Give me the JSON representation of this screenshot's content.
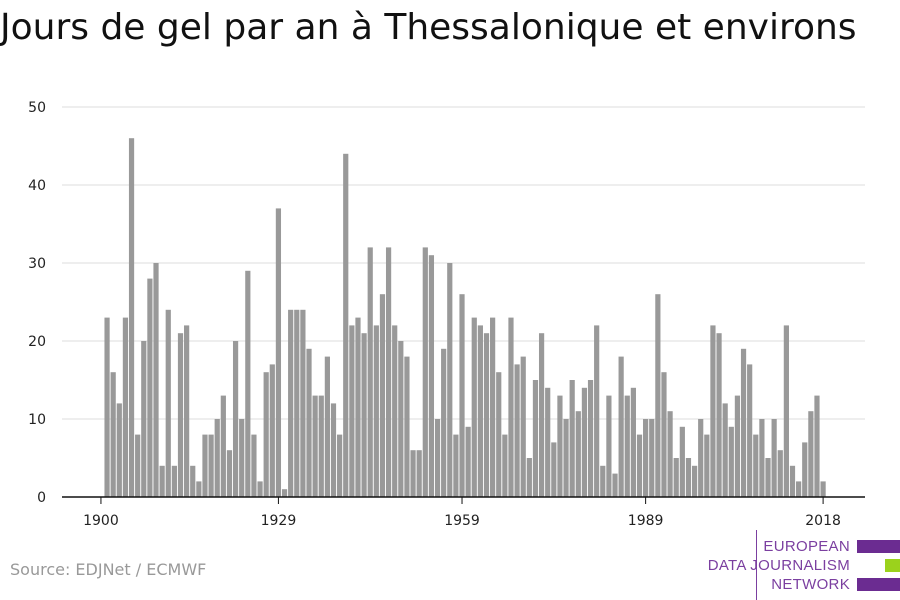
{
  "chart_data": {
    "type": "bar",
    "title": "Jours de gel par an à Thessalonique et environs",
    "xlabel": "",
    "ylabel": "",
    "ylim": [
      0,
      50
    ],
    "yticks": [
      0,
      10,
      20,
      30,
      40,
      50
    ],
    "xticks": [
      1900,
      1929,
      1959,
      1989,
      2018
    ],
    "grid": true,
    "bar_color": "#999999",
    "x": [
      1901,
      1902,
      1903,
      1904,
      1905,
      1906,
      1907,
      1908,
      1909,
      1910,
      1911,
      1912,
      1913,
      1914,
      1915,
      1916,
      1917,
      1918,
      1919,
      1920,
      1921,
      1922,
      1923,
      1924,
      1925,
      1926,
      1927,
      1928,
      1929,
      1930,
      1931,
      1932,
      1933,
      1934,
      1935,
      1936,
      1937,
      1938,
      1939,
      1940,
      1941,
      1942,
      1943,
      1944,
      1945,
      1946,
      1947,
      1948,
      1949,
      1950,
      1951,
      1952,
      1953,
      1954,
      1955,
      1956,
      1957,
      1958,
      1959,
      1960,
      1961,
      1962,
      1963,
      1964,
      1965,
      1966,
      1967,
      1968,
      1969,
      1970,
      1971,
      1972,
      1973,
      1974,
      1975,
      1976,
      1977,
      1978,
      1979,
      1980,
      1981,
      1982,
      1983,
      1984,
      1985,
      1986,
      1987,
      1988,
      1989,
      1990,
      1991,
      1992,
      1993,
      1994,
      1995,
      1996,
      1997,
      1998,
      1999,
      2000,
      2001,
      2002,
      2003,
      2004,
      2005,
      2006,
      2007,
      2008,
      2009,
      2010,
      2011,
      2012,
      2013,
      2014,
      2015,
      2016,
      2017,
      2018
    ],
    "values": [
      23,
      16,
      12,
      23,
      46,
      8,
      20,
      28,
      30,
      4,
      24,
      4,
      21,
      22,
      4,
      2,
      8,
      8,
      10,
      13,
      6,
      20,
      10,
      29,
      8,
      2,
      16,
      17,
      37,
      1,
      24,
      24,
      24,
      19,
      13,
      13,
      18,
      12,
      8,
      44,
      22,
      23,
      21,
      32,
      22,
      26,
      32,
      22,
      20,
      18,
      6,
      6,
      32,
      31,
      10,
      19,
      30,
      8,
      26,
      9,
      23,
      22,
      21,
      23,
      16,
      8,
      23,
      17,
      18,
      5,
      15,
      21,
      14,
      7,
      13,
      10,
      15,
      11,
      14,
      15,
      22,
      4,
      13,
      3,
      18,
      13,
      14,
      8,
      10,
      10,
      26,
      16,
      11,
      5,
      9,
      5,
      4,
      10,
      8,
      22,
      21,
      12,
      9,
      13,
      19,
      17,
      8,
      10,
      5,
      10,
      6,
      22,
      4,
      2,
      7,
      11,
      13,
      2
    ]
  },
  "source": "Source: EDJNet / ECMWF",
  "logo": {
    "line1": "EUROPEAN",
    "line2": "DATA JOURNALISM",
    "line3": "NETWORK",
    "purple": "#6b2c91",
    "green": "#9bd21c"
  }
}
